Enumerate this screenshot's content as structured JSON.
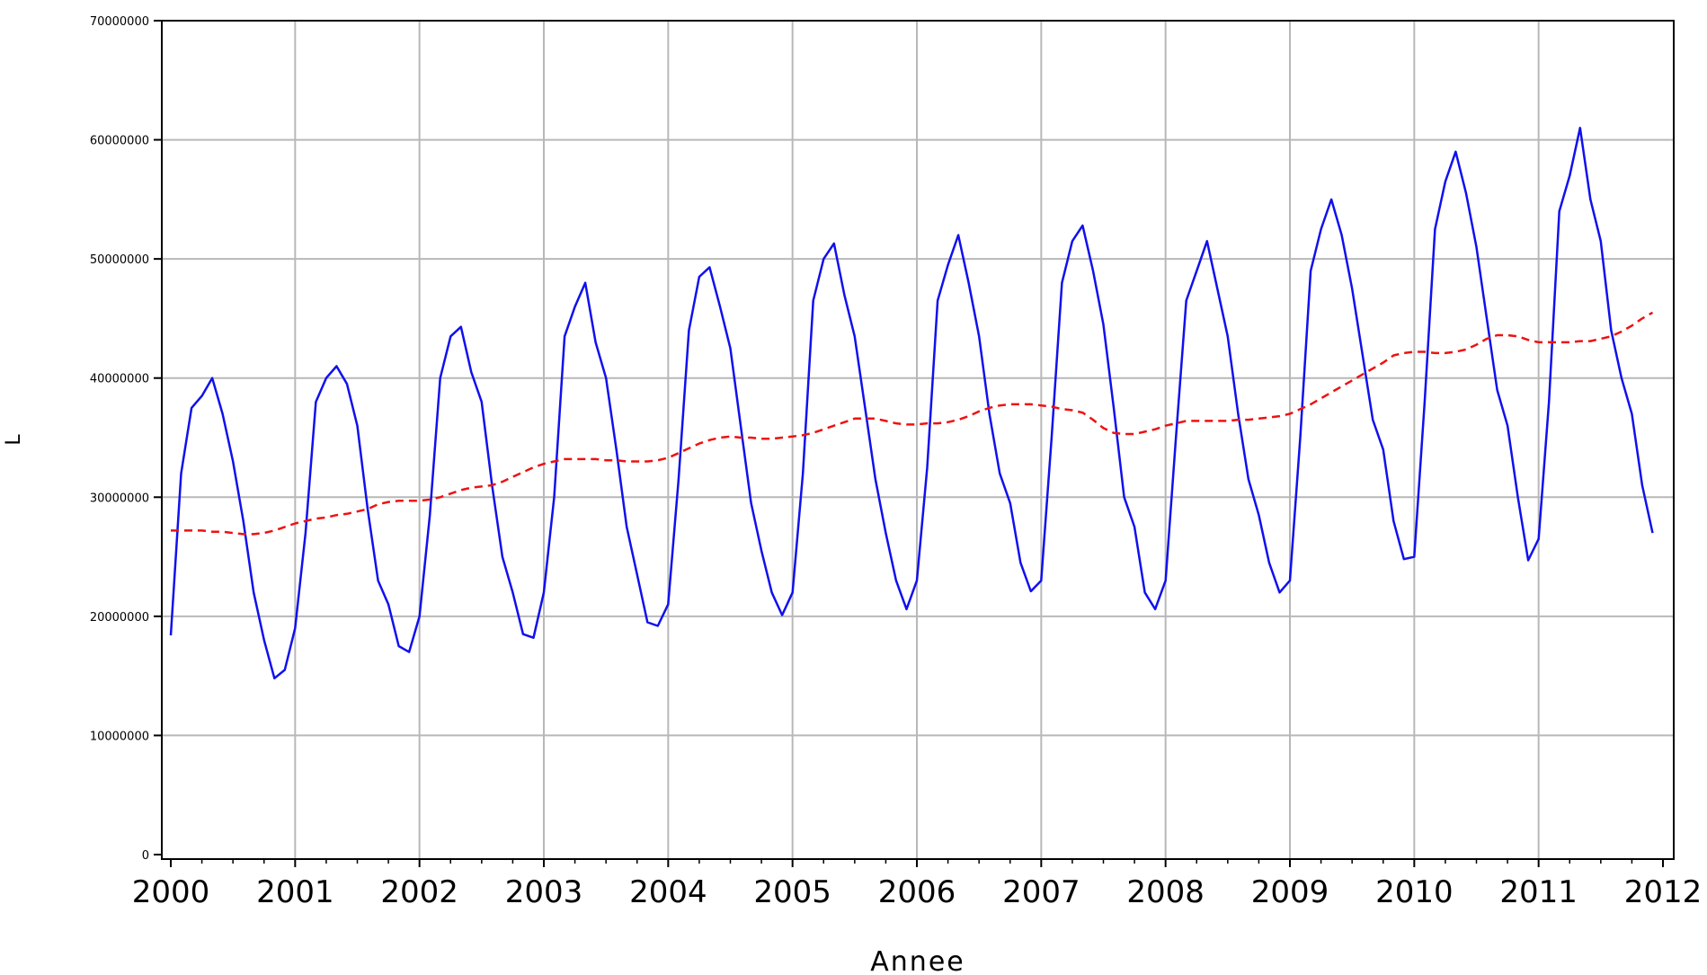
{
  "chart_data": {
    "type": "line",
    "title": "",
    "xlabel": "Annee",
    "ylabel": "L",
    "xlim": [
      2000,
      2012
    ],
    "ylim": [
      0,
      70000000
    ],
    "x_ticks": [
      "2000",
      "2001",
      "2002",
      "2003",
      "2004",
      "2005",
      "2006",
      "2007",
      "2008",
      "2009",
      "2010",
      "2011",
      "2012"
    ],
    "y_ticks": [
      "0",
      "10000000",
      "20000000",
      "30000000",
      "40000000",
      "50000000",
      "60000000",
      "70000000"
    ],
    "grid": true,
    "legend": "none",
    "series": [
      {
        "color": "#1010ee",
        "style": "solid",
        "values": [
          18400000,
          32000000,
          37500000,
          38500000,
          40000000,
          37000000,
          33000000,
          28000000,
          22000000,
          18000000,
          14800000,
          15500000,
          19000000,
          27000000,
          38000000,
          40000000,
          41000000,
          39500000,
          36000000,
          29000000,
          23000000,
          21000000,
          17500000,
          17000000,
          20000000,
          28500000,
          40000000,
          43500000,
          44300000,
          40500000,
          38000000,
          31000000,
          25000000,
          22000000,
          18500000,
          18200000,
          22000000,
          30000000,
          43500000,
          46000000,
          48000000,
          43000000,
          40000000,
          34000000,
          27500000,
          23500000,
          19500000,
          19200000,
          21000000,
          31500000,
          44000000,
          48500000,
          49300000,
          46000000,
          42500000,
          36000000,
          29500000,
          25500000,
          22000000,
          20100000,
          22000000,
          32000000,
          46500000,
          50000000,
          51300000,
          47000000,
          43500000,
          37500000,
          31500000,
          27000000,
          23000000,
          20600000,
          23000000,
          32500000,
          46500000,
          49500000,
          52000000,
          48000000,
          43500000,
          37000000,
          32000000,
          29500000,
          24500000,
          22100000,
          23000000,
          35000000,
          48000000,
          51500000,
          52800000,
          49000000,
          44500000,
          37500000,
          30000000,
          27500000,
          22000000,
          20600000,
          23000000,
          35000000,
          46500000,
          49000000,
          51500000,
          47500000,
          43500000,
          37000000,
          31500000,
          28500000,
          24500000,
          22000000,
          23000000,
          35000000,
          49000000,
          52500000,
          55000000,
          52000000,
          47500000,
          42000000,
          36500000,
          34000000,
          28000000,
          24800000,
          25000000,
          38000000,
          52500000,
          56500000,
          59000000,
          55500000,
          51000000,
          45000000,
          39000000,
          36000000,
          30000000,
          24700000,
          26500000,
          38000000,
          54000000,
          57000000,
          61000000,
          55000000,
          51500000,
          44000000,
          40000000,
          37000000,
          31000000,
          27000000
        ]
      },
      {
        "color": "#ee1111",
        "style": "dashed",
        "values": [
          27200000,
          27200000,
          27200000,
          27200000,
          27100000,
          27100000,
          27000000,
          26900000,
          26900000,
          27000000,
          27200000,
          27500000,
          27800000,
          28000000,
          28200000,
          28300000,
          28500000,
          28600000,
          28800000,
          29000000,
          29400000,
          29600000,
          29700000,
          29700000,
          29700000,
          29800000,
          30000000,
          30300000,
          30600000,
          30800000,
          30900000,
          31000000,
          31300000,
          31700000,
          32100000,
          32500000,
          32800000,
          33000000,
          33200000,
          33200000,
          33200000,
          33200000,
          33100000,
          33100000,
          33000000,
          33000000,
          33000000,
          33100000,
          33300000,
          33700000,
          34100000,
          34500000,
          34800000,
          35000000,
          35100000,
          35000000,
          35000000,
          34900000,
          34900000,
          35000000,
          35100000,
          35200000,
          35400000,
          35700000,
          36000000,
          36300000,
          36600000,
          36600000,
          36600000,
          36400000,
          36200000,
          36100000,
          36100000,
          36200000,
          36200000,
          36300000,
          36500000,
          36800000,
          37200000,
          37500000,
          37700000,
          37800000,
          37800000,
          37800000,
          37700000,
          37600000,
          37400000,
          37300000,
          37100000,
          36500000,
          35800000,
          35400000,
          35300000,
          35300000,
          35500000,
          35700000,
          36000000,
          36200000,
          36400000,
          36400000,
          36400000,
          36400000,
          36400000,
          36500000,
          36500000,
          36600000,
          36700000,
          36800000,
          37000000,
          37400000,
          37800000,
          38300000,
          38800000,
          39300000,
          39800000,
          40300000,
          40800000,
          41300000,
          41900000,
          42100000,
          42200000,
          42200000,
          42100000,
          42100000,
          42200000,
          42400000,
          42800000,
          43300000,
          43600000,
          43600000,
          43500000,
          43200000,
          43000000,
          43000000,
          43000000,
          43000000,
          43100000,
          43100000,
          43300000,
          43500000,
          43900000,
          44400000,
          45000000,
          45500000
        ]
      }
    ]
  }
}
